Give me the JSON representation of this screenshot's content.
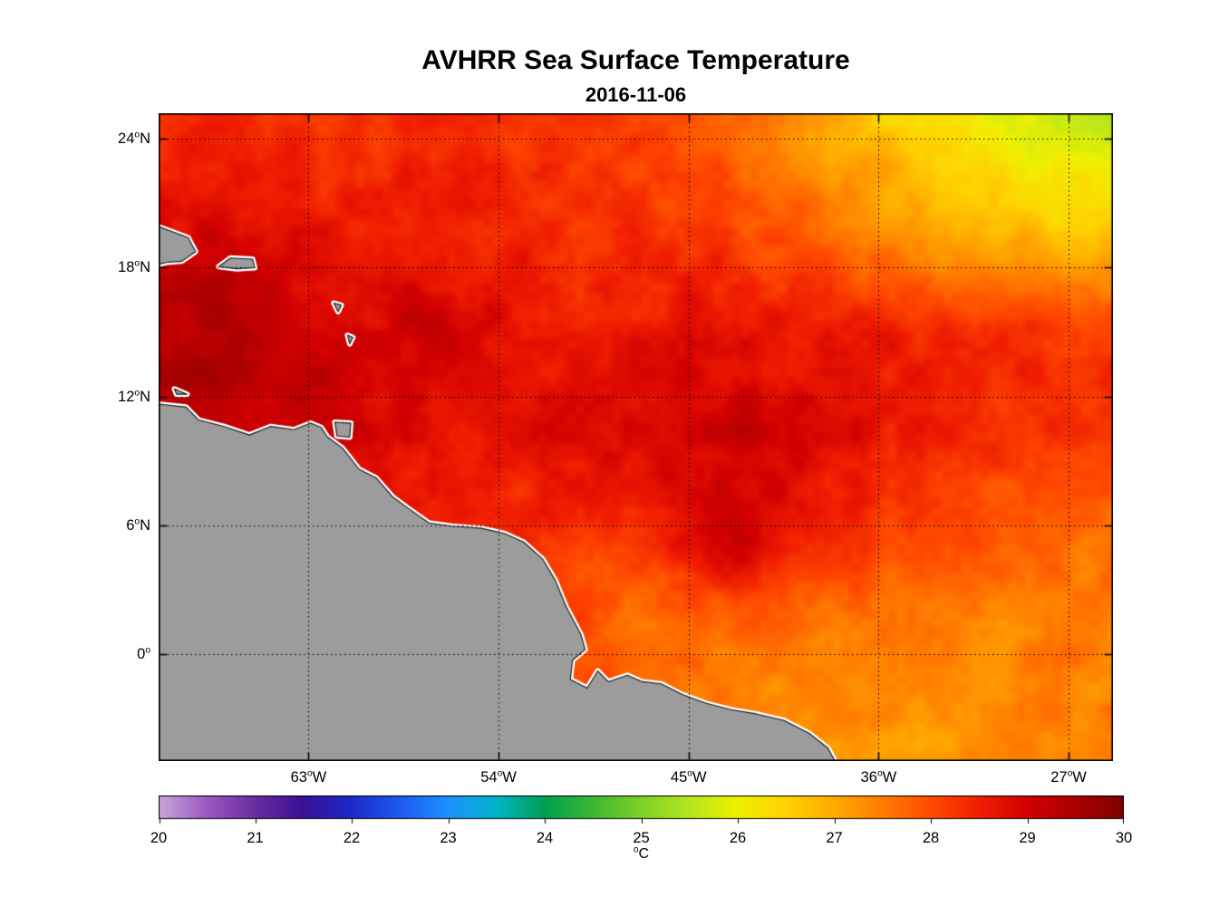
{
  "title": "AVHRR Sea Surface Temperature",
  "subtitle": "2016-11-06",
  "chart_data": {
    "type": "heatmap",
    "title": "AVHRR Sea Surface Temperature",
    "subtitle": "2016-11-06",
    "projection": {
      "lon_min": -70.1,
      "lon_max": -24.9,
      "lat_min": -5.0,
      "lat_max": 25.2
    },
    "x_ticks": [
      {
        "lon": -63,
        "label": "63°W"
      },
      {
        "lon": -54,
        "label": "54°W"
      },
      {
        "lon": -45,
        "label": "45°W"
      },
      {
        "lon": -36,
        "label": "36°W"
      },
      {
        "lon": -27,
        "label": "27°W"
      }
    ],
    "y_ticks": [
      {
        "lat": 24,
        "label": "24°N"
      },
      {
        "lat": 18,
        "label": "18°N"
      },
      {
        "lat": 12,
        "label": "12°N"
      },
      {
        "lat": 6,
        "label": "6°N"
      },
      {
        "lat": 0,
        "label": "0°"
      }
    ],
    "grid_lons": [
      -63,
      -54,
      -45,
      -36,
      -27
    ],
    "grid_lats": [
      0,
      6,
      12,
      18,
      24
    ],
    "sst_grid": {
      "units": "°C",
      "lons": [
        -70,
        -67.5,
        -65,
        -62.5,
        -60,
        -57.5,
        -55,
        -52.5,
        -50,
        -47.5,
        -45,
        -42.5,
        -40,
        -37.5,
        -35,
        -32.5,
        -30,
        -27.5,
        -25
      ],
      "lats": [
        -5,
        -2.5,
        0,
        2.5,
        5,
        7.5,
        10,
        12.5,
        15,
        17.5,
        20,
        22.5,
        25
      ],
      "values": [
        [
          28.5,
          28.5,
          28.5,
          28.5,
          28.4,
          28.3,
          28.2,
          28.0,
          27.8,
          27.6,
          27.5,
          27.4,
          27.3,
          27.2,
          27.2,
          27.3,
          27.3,
          27.4,
          27.4
        ],
        [
          28.6,
          28.6,
          28.5,
          28.5,
          28.4,
          28.3,
          28.2,
          28.0,
          27.9,
          27.7,
          27.6,
          27.5,
          27.4,
          27.3,
          27.3,
          27.3,
          27.4,
          27.4,
          27.5
        ],
        [
          28.7,
          28.7,
          28.6,
          28.6,
          28.5,
          28.4,
          28.3,
          28.1,
          27.8,
          27.7,
          27.6,
          27.5,
          27.4,
          27.4,
          27.4,
          27.4,
          27.4,
          27.5,
          27.5
        ],
        [
          28.8,
          28.8,
          28.7,
          28.7,
          28.6,
          28.5,
          28.4,
          28.2,
          28.0,
          27.6,
          27.9,
          28.1,
          27.9,
          27.7,
          27.6,
          27.5,
          27.5,
          27.5,
          27.6
        ],
        [
          28.9,
          28.9,
          28.8,
          28.8,
          28.7,
          28.6,
          28.5,
          28.3,
          28.1,
          28.2,
          28.9,
          29.0,
          28.4,
          28.2,
          28.0,
          27.9,
          27.8,
          27.7,
          27.7
        ],
        [
          29.0,
          29.0,
          28.9,
          28.8,
          28.7,
          28.6,
          28.5,
          28.4,
          28.5,
          28.6,
          28.9,
          29.0,
          28.7,
          28.6,
          28.4,
          28.2,
          28.0,
          27.9,
          27.8
        ],
        [
          29.2,
          29.1,
          29.0,
          29.0,
          28.9,
          28.7,
          28.6,
          28.7,
          28.8,
          28.8,
          28.9,
          29.1,
          28.9,
          28.8,
          28.6,
          28.5,
          28.3,
          28.2,
          28.1
        ],
        [
          29.4,
          29.5,
          29.3,
          29.2,
          29.0,
          28.9,
          28.8,
          28.8,
          28.7,
          28.8,
          28.9,
          28.9,
          28.8,
          28.7,
          28.6,
          28.5,
          28.4,
          28.3,
          28.3
        ],
        [
          29.3,
          29.4,
          29.2,
          29.0,
          28.9,
          29.1,
          28.9,
          28.7,
          28.6,
          28.6,
          28.7,
          28.7,
          28.6,
          28.5,
          28.5,
          28.4,
          28.3,
          28.2,
          28.1
        ],
        [
          29.2,
          29.3,
          29.2,
          28.9,
          28.8,
          28.8,
          28.7,
          28.5,
          28.4,
          28.4,
          28.5,
          28.4,
          28.2,
          28.0,
          27.8,
          27.7,
          27.6,
          27.5,
          27.4
        ],
        [
          28.8,
          28.9,
          28.7,
          28.6,
          28.5,
          28.6,
          28.5,
          28.4,
          28.3,
          28.3,
          28.2,
          28.0,
          27.8,
          27.5,
          27.2,
          27.0,
          26.8,
          26.6,
          26.5
        ],
        [
          28.5,
          28.6,
          28.5,
          28.4,
          28.4,
          28.5,
          28.4,
          28.3,
          28.2,
          28.1,
          28.0,
          27.8,
          27.5,
          27.2,
          26.9,
          26.6,
          26.3,
          26.1,
          25.9
        ],
        [
          28.4,
          28.4,
          28.3,
          28.3,
          28.3,
          28.4,
          28.3,
          28.2,
          28.2,
          28.1,
          28.0,
          27.7,
          27.3,
          26.9,
          26.5,
          26.1,
          25.9,
          25.6,
          25.4
        ]
      ]
    },
    "colorbar": {
      "min": 20,
      "max": 30,
      "ticks": [
        20,
        21,
        22,
        23,
        24,
        25,
        26,
        27,
        28,
        29,
        30
      ],
      "label": "°C"
    },
    "colormap_stops": [
      [
        20.0,
        "#C9A6DC"
      ],
      [
        20.5,
        "#9B59C0"
      ],
      [
        21.0,
        "#6A2C9E"
      ],
      [
        21.5,
        "#3A1096"
      ],
      [
        22.0,
        "#1B2AC8"
      ],
      [
        22.5,
        "#1E5AEE"
      ],
      [
        23.0,
        "#1E90FF"
      ],
      [
        23.5,
        "#00B4C8"
      ],
      [
        24.0,
        "#00A050"
      ],
      [
        24.5,
        "#3CB832"
      ],
      [
        25.0,
        "#7DD028"
      ],
      [
        25.5,
        "#B4E61E"
      ],
      [
        26.0,
        "#F0F000"
      ],
      [
        26.5,
        "#FFD200"
      ],
      [
        27.0,
        "#FFAA00"
      ],
      [
        27.5,
        "#FF7D00"
      ],
      [
        28.0,
        "#FF4B00"
      ],
      [
        28.5,
        "#F01E00"
      ],
      [
        29.0,
        "#D20000"
      ],
      [
        29.5,
        "#AA0000"
      ],
      [
        30.0,
        "#800000"
      ]
    ],
    "land": {
      "fill": "#9C9C9C",
      "edge": "#141414",
      "halo": "#FFFFFF"
    },
    "land_polygons": {
      "south_america": [
        [
          -70.6,
          11.7
        ],
        [
          -68.8,
          11.5
        ],
        [
          -68.2,
          10.9
        ],
        [
          -67.0,
          10.6
        ],
        [
          -65.8,
          10.2
        ],
        [
          -64.8,
          10.6
        ],
        [
          -63.7,
          10.45
        ],
        [
          -62.9,
          10.75
        ],
        [
          -62.4,
          10.55
        ],
        [
          -62.1,
          10.1
        ],
        [
          -61.4,
          9.6
        ],
        [
          -60.6,
          8.6
        ],
        [
          -59.8,
          8.2
        ],
        [
          -59.0,
          7.3
        ],
        [
          -58.3,
          6.8
        ],
        [
          -57.3,
          6.1
        ],
        [
          -56.2,
          5.95
        ],
        [
          -54.8,
          5.85
        ],
        [
          -53.7,
          5.6
        ],
        [
          -52.8,
          5.2
        ],
        [
          -51.9,
          4.4
        ],
        [
          -51.3,
          3.4
        ],
        [
          -50.8,
          2.2
        ],
        [
          -50.1,
          0.9
        ],
        [
          -49.9,
          0.2
        ],
        [
          -50.5,
          -0.3
        ],
        [
          -50.6,
          -1.2
        ],
        [
          -49.8,
          -1.6
        ],
        [
          -49.3,
          -0.8
        ],
        [
          -48.8,
          -1.3
        ],
        [
          -47.9,
          -1.0
        ],
        [
          -47.2,
          -1.3
        ],
        [
          -46.3,
          -1.4
        ],
        [
          -45.3,
          -1.9
        ],
        [
          -44.2,
          -2.3
        ],
        [
          -43.0,
          -2.6
        ],
        [
          -41.8,
          -2.8
        ],
        [
          -40.5,
          -3.1
        ],
        [
          -39.3,
          -3.7
        ],
        [
          -38.4,
          -4.4
        ],
        [
          -37.9,
          -5.3
        ],
        [
          -37.5,
          -6.0
        ],
        [
          -70.6,
          -6.0
        ]
      ],
      "hispaniola": [
        [
          -70.6,
          20.1
        ],
        [
          -68.7,
          19.4
        ],
        [
          -68.35,
          18.75
        ],
        [
          -69.0,
          18.3
        ],
        [
          -69.7,
          18.25
        ],
        [
          -70.6,
          18.05
        ]
      ],
      "puerto_rico": [
        [
          -67.25,
          18.05
        ],
        [
          -66.7,
          18.45
        ],
        [
          -65.65,
          18.4
        ],
        [
          -65.55,
          18.0
        ],
        [
          -66.4,
          17.95
        ]
      ],
      "trinidad": [
        [
          -61.75,
          10.8
        ],
        [
          -61.0,
          10.75
        ],
        [
          -61.05,
          10.1
        ],
        [
          -61.65,
          10.15
        ]
      ],
      "guadeloupe": [
        [
          -61.8,
          16.35
        ],
        [
          -61.45,
          16.25
        ],
        [
          -61.6,
          15.95
        ]
      ],
      "martinique": [
        [
          -61.15,
          14.85
        ],
        [
          -60.9,
          14.75
        ],
        [
          -61.05,
          14.45
        ]
      ],
      "curacao_bonaire": [
        [
          -69.35,
          12.35
        ],
        [
          -68.75,
          12.1
        ],
        [
          -69.25,
          12.1
        ]
      ]
    }
  }
}
